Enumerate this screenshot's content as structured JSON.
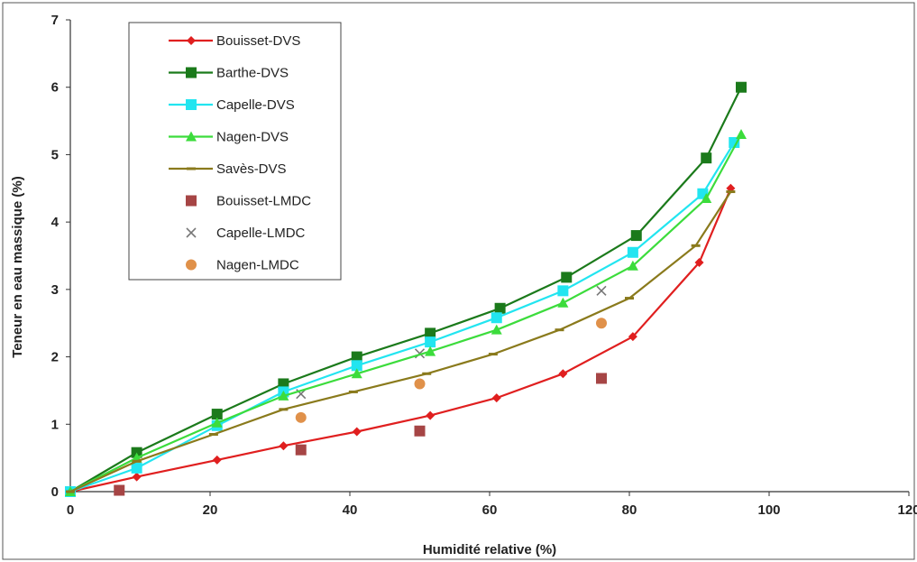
{
  "chart_data": {
    "type": "line",
    "xlabel": "Humidité relative (%)",
    "ylabel": "Teneur en eau massique (%)",
    "xlim": [
      0,
      120
    ],
    "ylim": [
      0,
      7
    ],
    "xticks": [
      0,
      20,
      40,
      60,
      80,
      100,
      120
    ],
    "yticks": [
      0,
      1,
      2,
      3,
      4,
      5,
      6,
      7
    ],
    "xtick_labels": [
      "0",
      "20",
      "40",
      "60",
      "80",
      "100",
      "120"
    ],
    "ytick_labels": [
      "0",
      "1",
      "2",
      "3",
      "4",
      "5",
      "6",
      "7"
    ],
    "grid": false,
    "legend_position": "top-left",
    "series": [
      {
        "name": "Bouisset-DVS",
        "kind": "line",
        "marker": "diamond",
        "color": "#e01f1f",
        "x": [
          0,
          9.5,
          21,
          30.5,
          41,
          51.5,
          61,
          70.5,
          80.5,
          90,
          94.5
        ],
        "y": [
          0,
          0.22,
          0.47,
          0.68,
          0.89,
          1.13,
          1.39,
          1.75,
          2.3,
          3.4,
          4.5
        ]
      },
      {
        "name": "Barthe-DVS",
        "kind": "line",
        "marker": "square",
        "color": "#1b7a1b",
        "x": [
          0,
          9.5,
          21,
          30.5,
          41,
          51.5,
          61.5,
          71,
          81,
          91,
          96
        ],
        "y": [
          0,
          0.58,
          1.15,
          1.6,
          2.0,
          2.35,
          2.72,
          3.18,
          3.8,
          4.95,
          6.0
        ]
      },
      {
        "name": "Capelle-DVS",
        "kind": "line",
        "marker": "square",
        "color": "#22e5f0",
        "x": [
          0,
          9.5,
          21,
          30.5,
          41,
          51.5,
          61,
          70.5,
          80.5,
          90.5,
          95
        ],
        "y": [
          0,
          0.35,
          0.98,
          1.48,
          1.87,
          2.22,
          2.58,
          2.98,
          3.55,
          4.42,
          5.18
        ]
      },
      {
        "name": "Nagen-DVS",
        "kind": "line",
        "marker": "triangle",
        "color": "#3cdc3c",
        "x": [
          0,
          9.5,
          21,
          30.5,
          41,
          51.5,
          61,
          70.5,
          80.5,
          91,
          96
        ],
        "y": [
          0,
          0.5,
          1.02,
          1.42,
          1.75,
          2.08,
          2.4,
          2.8,
          3.35,
          4.35,
          5.3
        ]
      },
      {
        "name": "Savès-DVS",
        "kind": "line",
        "marker": "dash",
        "color": "#8a7a1c",
        "x": [
          0,
          9.5,
          20.5,
          30.5,
          40.5,
          51,
          60.5,
          70,
          80,
          89.5,
          94.5
        ],
        "y": [
          0,
          0.45,
          0.85,
          1.22,
          1.48,
          1.75,
          2.04,
          2.4,
          2.87,
          3.65,
          4.45
        ]
      },
      {
        "name": "Bouisset-LMDC",
        "kind": "scatter",
        "marker": "square",
        "color": "#a64545",
        "x": [
          7,
          33,
          50,
          76
        ],
        "y": [
          0.02,
          0.62,
          0.9,
          1.68
        ]
      },
      {
        "name": "Capelle-LMDC",
        "kind": "scatter",
        "marker": "x",
        "color": "#777777",
        "x": [
          33,
          50,
          76
        ],
        "y": [
          1.45,
          2.05,
          2.98
        ]
      },
      {
        "name": "Nagen-LMDC",
        "kind": "scatter",
        "marker": "circle",
        "color": "#e0914a",
        "x": [
          33,
          50,
          76
        ],
        "y": [
          1.1,
          1.6,
          2.5
        ]
      }
    ]
  }
}
